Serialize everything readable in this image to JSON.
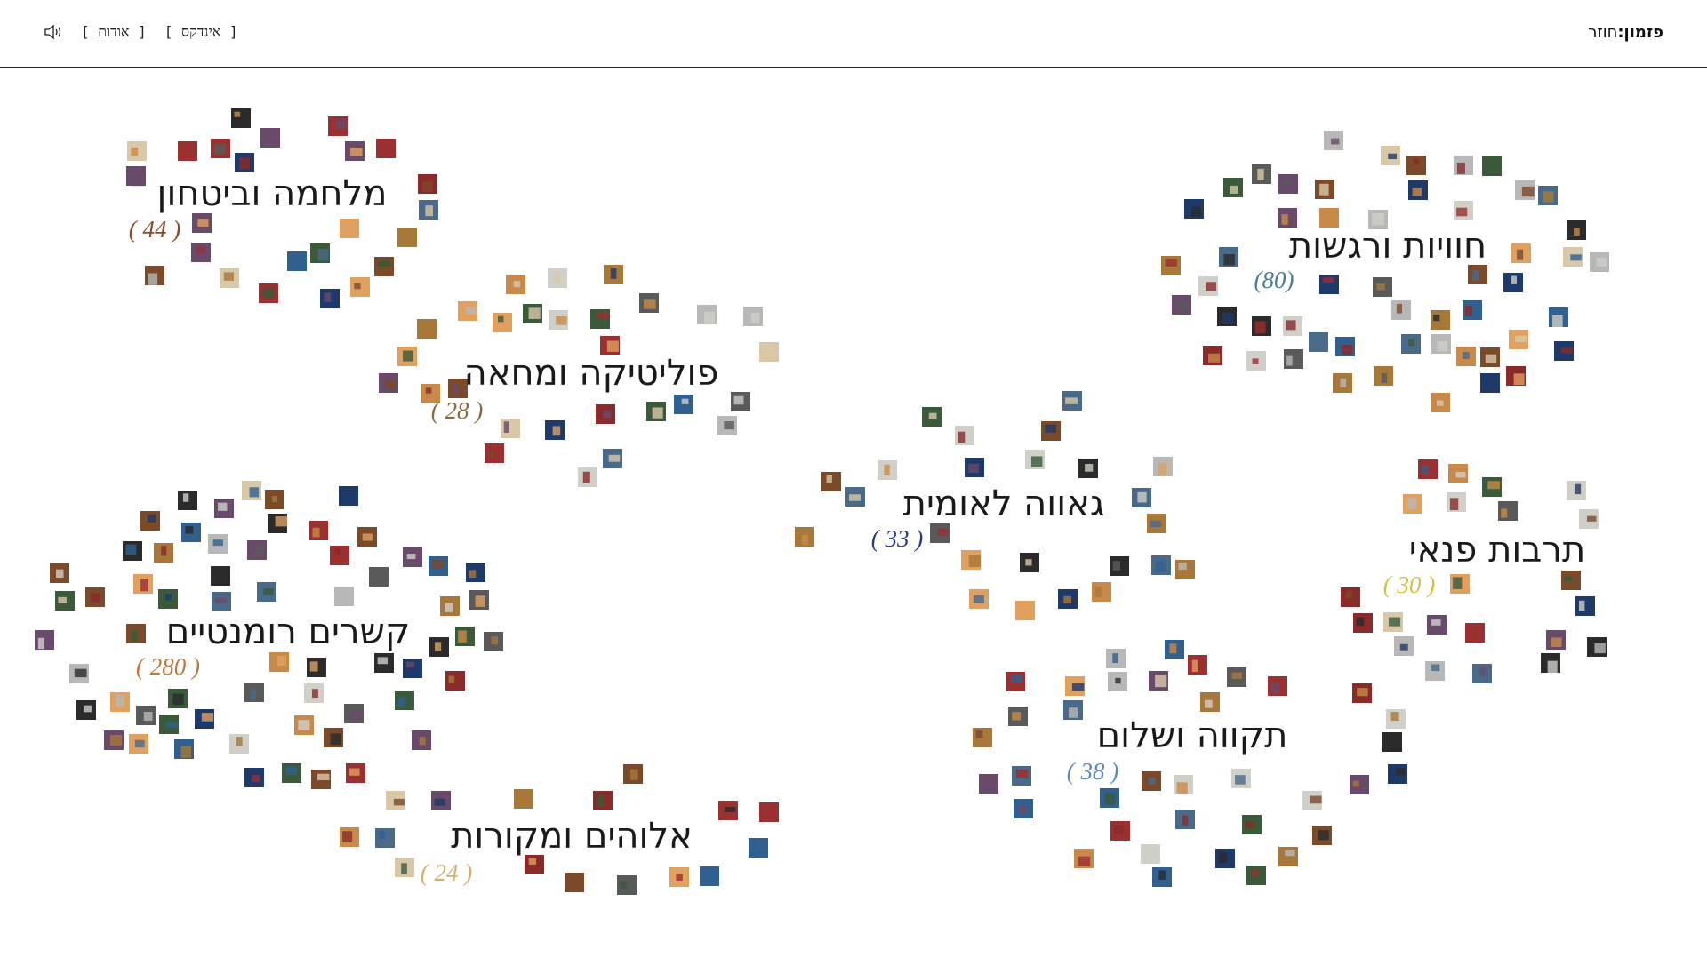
{
  "header": {
    "brand": "פזמון:",
    "subtitle": "חוזר"
  },
  "nav": [
    {
      "label": "[ אינדקס ]"
    },
    {
      "label": "[ אודות ]"
    }
  ],
  "clusters": [
    {
      "title": "מלחמה וביטחון",
      "count_label": "( 44 )",
      "color": "#8a4a2a"
    },
    {
      "title": "פוליטיקה ומחאה",
      "count_label": "( 28 )",
      "color": "#8a6a3a"
    },
    {
      "title": "קשרים רומנטיים",
      "count_label": "( 280 )",
      "color": "#c0783a"
    },
    {
      "title": "אלוהים ומקורות",
      "count_label": "( 24 )",
      "color": "#d4b070"
    },
    {
      "title": "חוויות ורגשות",
      "count_label": "(80)",
      "color": "#4a7a9a"
    },
    {
      "title": "גאווה לאומית",
      "count_label": "( 33 )",
      "color": "#2a3a8a"
    },
    {
      "title": "תרבות פנאי",
      "count_label": "( 30 )",
      "color": "#d8c040"
    },
    {
      "title": "תקווה ושלום",
      "count_label": "( 38 )",
      "color": "#5a8ac0"
    }
  ]
}
